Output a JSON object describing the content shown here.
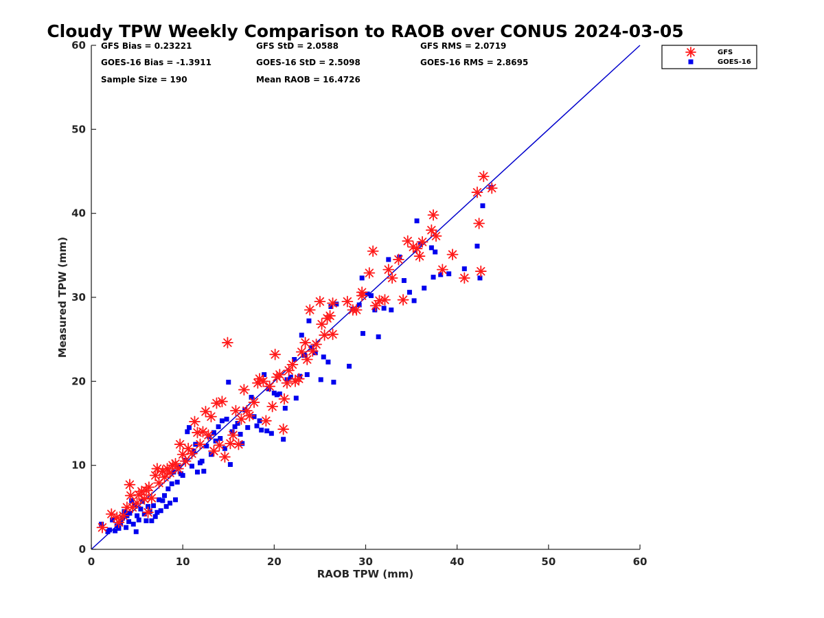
{
  "chart_data": {
    "type": "scatter",
    "title": "Cloudy TPW Weekly Comparison to RAOB over CONUS 2024-03-05",
    "xlabel": "RAOB TPW (mm)",
    "ylabel": "Measured TPW (mm)",
    "xlim": [
      0,
      60
    ],
    "ylim": [
      0,
      60
    ],
    "xticks": [
      "0",
      "10",
      "20",
      "30",
      "40",
      "50",
      "60"
    ],
    "yticks": [
      "0",
      "10",
      "20",
      "30",
      "40",
      "50",
      "60"
    ],
    "grid": false,
    "legend_position": "outside-top-right",
    "reference_line": {
      "from": [
        0,
        0
      ],
      "to": [
        60,
        60
      ],
      "color": "#0000cc"
    },
    "stats": {
      "gfs_bias": "GFS Bias = 0.23221",
      "gfs_std": "GFS StD = 2.0588",
      "gfs_rms": "GFS RMS = 2.0719",
      "goes_bias": "GOES-16 Bias = -1.3911",
      "goes_std": "GOES-16 StD = 2.5098",
      "goes_rms": "GOES-16 RMS = 2.8695",
      "sample_size": "Sample Size = 190",
      "mean_raob": "Mean RAOB = 16.4726"
    },
    "series": [
      {
        "name": "GFS",
        "marker": "asterisk",
        "color": "#ff1a1a",
        "points": [
          [
            1.2,
            2.6
          ],
          [
            2.2,
            4.2
          ],
          [
            2.8,
            3.8
          ],
          [
            3.0,
            3.2
          ],
          [
            3.5,
            4.0
          ],
          [
            3.9,
            5.0
          ],
          [
            4.2,
            7.7
          ],
          [
            4.3,
            6.4
          ],
          [
            4.5,
            5.0
          ],
          [
            5.0,
            5.5
          ],
          [
            5.2,
            6.5
          ],
          [
            5.5,
            6.9
          ],
          [
            5.8,
            6.0
          ],
          [
            6.0,
            7.0
          ],
          [
            6.2,
            4.4
          ],
          [
            6.3,
            7.4
          ],
          [
            6.6,
            6.1
          ],
          [
            7.0,
            8.8
          ],
          [
            7.2,
            9.6
          ],
          [
            7.4,
            7.9
          ],
          [
            7.8,
            9.3
          ],
          [
            8.0,
            8.6
          ],
          [
            8.3,
            9.6
          ],
          [
            8.6,
            9.1
          ],
          [
            8.9,
            10.0
          ],
          [
            9.2,
            10.2
          ],
          [
            9.5,
            9.6
          ],
          [
            9.7,
            12.5
          ],
          [
            10.0,
            11.3
          ],
          [
            10.3,
            10.5
          ],
          [
            10.6,
            12.0
          ],
          [
            11.0,
            11.4
          ],
          [
            11.3,
            15.2
          ],
          [
            11.6,
            13.9
          ],
          [
            11.9,
            12.5
          ],
          [
            12.2,
            14.0
          ],
          [
            12.5,
            16.4
          ],
          [
            12.8,
            13.6
          ],
          [
            13.1,
            15.8
          ],
          [
            13.4,
            11.7
          ],
          [
            13.7,
            17.4
          ],
          [
            14.0,
            12.4
          ],
          [
            14.3,
            17.6
          ],
          [
            14.6,
            11.0
          ],
          [
            14.9,
            24.6
          ],
          [
            15.2,
            12.6
          ],
          [
            15.5,
            13.6
          ],
          [
            15.8,
            16.5
          ],
          [
            16.1,
            12.5
          ],
          [
            16.4,
            15.5
          ],
          [
            16.7,
            19.0
          ],
          [
            17.0,
            16.5
          ],
          [
            17.3,
            15.9
          ],
          [
            17.8,
            17.5
          ],
          [
            18.2,
            19.8
          ],
          [
            18.4,
            20.3
          ],
          [
            18.8,
            20.0
          ],
          [
            19.1,
            15.3
          ],
          [
            19.5,
            19.4
          ],
          [
            19.8,
            17.0
          ],
          [
            20.1,
            23.2
          ],
          [
            20.3,
            20.5
          ],
          [
            20.6,
            20.8
          ],
          [
            21.0,
            14.3
          ],
          [
            21.1,
            17.9
          ],
          [
            21.4,
            19.8
          ],
          [
            21.6,
            21.3
          ],
          [
            22.0,
            22.0
          ],
          [
            22.3,
            20.0
          ],
          [
            22.7,
            20.3
          ],
          [
            23.0,
            23.5
          ],
          [
            23.4,
            24.6
          ],
          [
            23.6,
            22.6
          ],
          [
            23.9,
            28.5
          ],
          [
            24.2,
            23.6
          ],
          [
            24.6,
            24.4
          ],
          [
            25.0,
            29.5
          ],
          [
            25.2,
            26.8
          ],
          [
            25.5,
            25.5
          ],
          [
            25.8,
            27.5
          ],
          [
            26.1,
            27.8
          ],
          [
            26.4,
            25.6
          ],
          [
            26.4,
            29.3
          ],
          [
            28.0,
            29.5
          ],
          [
            28.6,
            28.5
          ],
          [
            29.0,
            28.5
          ],
          [
            29.6,
            30.2
          ],
          [
            29.6,
            30.6
          ],
          [
            30.4,
            32.9
          ],
          [
            30.8,
            35.5
          ],
          [
            31.1,
            29.0
          ],
          [
            31.5,
            29.6
          ],
          [
            32.1,
            29.7
          ],
          [
            32.5,
            33.3
          ],
          [
            32.9,
            32.3
          ],
          [
            33.6,
            34.5
          ],
          [
            34.1,
            29.7
          ],
          [
            34.6,
            36.7
          ],
          [
            35.2,
            36.0
          ],
          [
            35.6,
            35.8
          ],
          [
            35.9,
            34.9
          ],
          [
            36.2,
            36.6
          ],
          [
            37.2,
            38.0
          ],
          [
            37.4,
            39.8
          ],
          [
            37.7,
            37.3
          ],
          [
            38.4,
            33.3
          ],
          [
            39.5,
            35.1
          ],
          [
            40.8,
            32.3
          ],
          [
            42.2,
            42.5
          ],
          [
            42.4,
            38.8
          ],
          [
            42.6,
            33.1
          ],
          [
            42.9,
            44.4
          ],
          [
            43.8,
            43.0
          ]
        ]
      },
      {
        "name": "GOES-16",
        "marker": "square",
        "color": "#0000ee",
        "points": [
          [
            1.1,
            3.0
          ],
          [
            1.8,
            2.1
          ],
          [
            2.0,
            2.3
          ],
          [
            2.3,
            3.5
          ],
          [
            2.6,
            2.2
          ],
          [
            2.8,
            2.8
          ],
          [
            3.0,
            2.5
          ],
          [
            3.2,
            3.1
          ],
          [
            3.4,
            3.7
          ],
          [
            3.6,
            4.5
          ],
          [
            3.8,
            2.6
          ],
          [
            3.9,
            4.0
          ],
          [
            4.1,
            3.3
          ],
          [
            4.2,
            4.3
          ],
          [
            4.4,
            5.8
          ],
          [
            4.6,
            3.0
          ],
          [
            4.8,
            5.3
          ],
          [
            4.9,
            2.1
          ],
          [
            5.0,
            4.0
          ],
          [
            5.2,
            3.5
          ],
          [
            5.4,
            4.8
          ],
          [
            5.6,
            5.7
          ],
          [
            5.8,
            4.2
          ],
          [
            6.0,
            3.4
          ],
          [
            6.2,
            5.1
          ],
          [
            6.4,
            4.5
          ],
          [
            6.6,
            3.4
          ],
          [
            6.8,
            5.2
          ],
          [
            7.0,
            3.9
          ],
          [
            7.2,
            4.4
          ],
          [
            7.4,
            5.9
          ],
          [
            7.6,
            4.6
          ],
          [
            7.8,
            5.8
          ],
          [
            8.0,
            6.4
          ],
          [
            8.2,
            5.1
          ],
          [
            8.4,
            7.2
          ],
          [
            8.6,
            5.5
          ],
          [
            8.8,
            7.8
          ],
          [
            9.0,
            9.2
          ],
          [
            9.2,
            5.9
          ],
          [
            9.4,
            8.0
          ],
          [
            9.6,
            9.8
          ],
          [
            9.8,
            9.0
          ],
          [
            10.0,
            8.8
          ],
          [
            10.3,
            10.6
          ],
          [
            10.5,
            14.0
          ],
          [
            10.7,
            14.5
          ],
          [
            11.0,
            9.9
          ],
          [
            11.2,
            11.7
          ],
          [
            11.4,
            12.5
          ],
          [
            11.6,
            9.2
          ],
          [
            11.9,
            10.3
          ],
          [
            12.1,
            10.5
          ],
          [
            12.3,
            9.3
          ],
          [
            12.6,
            12.3
          ],
          [
            12.9,
            13.4
          ],
          [
            13.1,
            11.3
          ],
          [
            13.4,
            13.9
          ],
          [
            13.6,
            12.9
          ],
          [
            13.9,
            14.6
          ],
          [
            14.1,
            13.2
          ],
          [
            14.3,
            15.3
          ],
          [
            14.6,
            12.0
          ],
          [
            14.8,
            15.5
          ],
          [
            15.0,
            19.9
          ],
          [
            15.2,
            10.1
          ],
          [
            15.4,
            14.0
          ],
          [
            15.7,
            14.6
          ],
          [
            16.0,
            15.0
          ],
          [
            16.3,
            13.7
          ],
          [
            16.5,
            12.6
          ],
          [
            16.8,
            16.6
          ],
          [
            17.1,
            14.5
          ],
          [
            17.5,
            18.1
          ],
          [
            17.8,
            15.8
          ],
          [
            18.1,
            14.7
          ],
          [
            18.4,
            15.3
          ],
          [
            18.6,
            14.2
          ],
          [
            18.9,
            20.8
          ],
          [
            19.2,
            14.1
          ],
          [
            19.4,
            19.1
          ],
          [
            19.7,
            13.8
          ],
          [
            20.0,
            18.6
          ],
          [
            20.3,
            18.4
          ],
          [
            20.6,
            18.5
          ],
          [
            21.0,
            13.1
          ],
          [
            21.2,
            16.8
          ],
          [
            21.4,
            20.2
          ],
          [
            21.8,
            20.5
          ],
          [
            22.2,
            22.6
          ],
          [
            22.4,
            18.0
          ],
          [
            22.8,
            20.6
          ],
          [
            23.0,
            25.5
          ],
          [
            23.3,
            23.1
          ],
          [
            23.6,
            20.8
          ],
          [
            23.8,
            27.2
          ],
          [
            24.1,
            24.0
          ],
          [
            24.5,
            23.4
          ],
          [
            25.1,
            20.2
          ],
          [
            25.4,
            22.9
          ],
          [
            25.9,
            22.3
          ],
          [
            26.2,
            28.9
          ],
          [
            26.5,
            19.9
          ],
          [
            26.8,
            29.2
          ],
          [
            28.2,
            21.8
          ],
          [
            28.6,
            28.6
          ],
          [
            29.3,
            29.1
          ],
          [
            29.6,
            32.3
          ],
          [
            29.7,
            25.7
          ],
          [
            30.2,
            30.4
          ],
          [
            30.6,
            30.2
          ],
          [
            31.0,
            28.5
          ],
          [
            31.4,
            25.3
          ],
          [
            32.0,
            28.7
          ],
          [
            32.5,
            34.5
          ],
          [
            32.8,
            28.5
          ],
          [
            33.7,
            34.8
          ],
          [
            34.2,
            32.0
          ],
          [
            34.8,
            30.6
          ],
          [
            35.3,
            29.6
          ],
          [
            35.6,
            39.1
          ],
          [
            36.0,
            36.4
          ],
          [
            36.4,
            31.1
          ],
          [
            37.2,
            35.9
          ],
          [
            37.4,
            32.4
          ],
          [
            37.6,
            35.4
          ],
          [
            38.2,
            32.7
          ],
          [
            39.1,
            32.8
          ],
          [
            40.8,
            33.4
          ],
          [
            42.2,
            36.1
          ],
          [
            42.5,
            32.3
          ],
          [
            42.8,
            40.9
          ],
          [
            43.7,
            43.1
          ]
        ]
      }
    ]
  }
}
